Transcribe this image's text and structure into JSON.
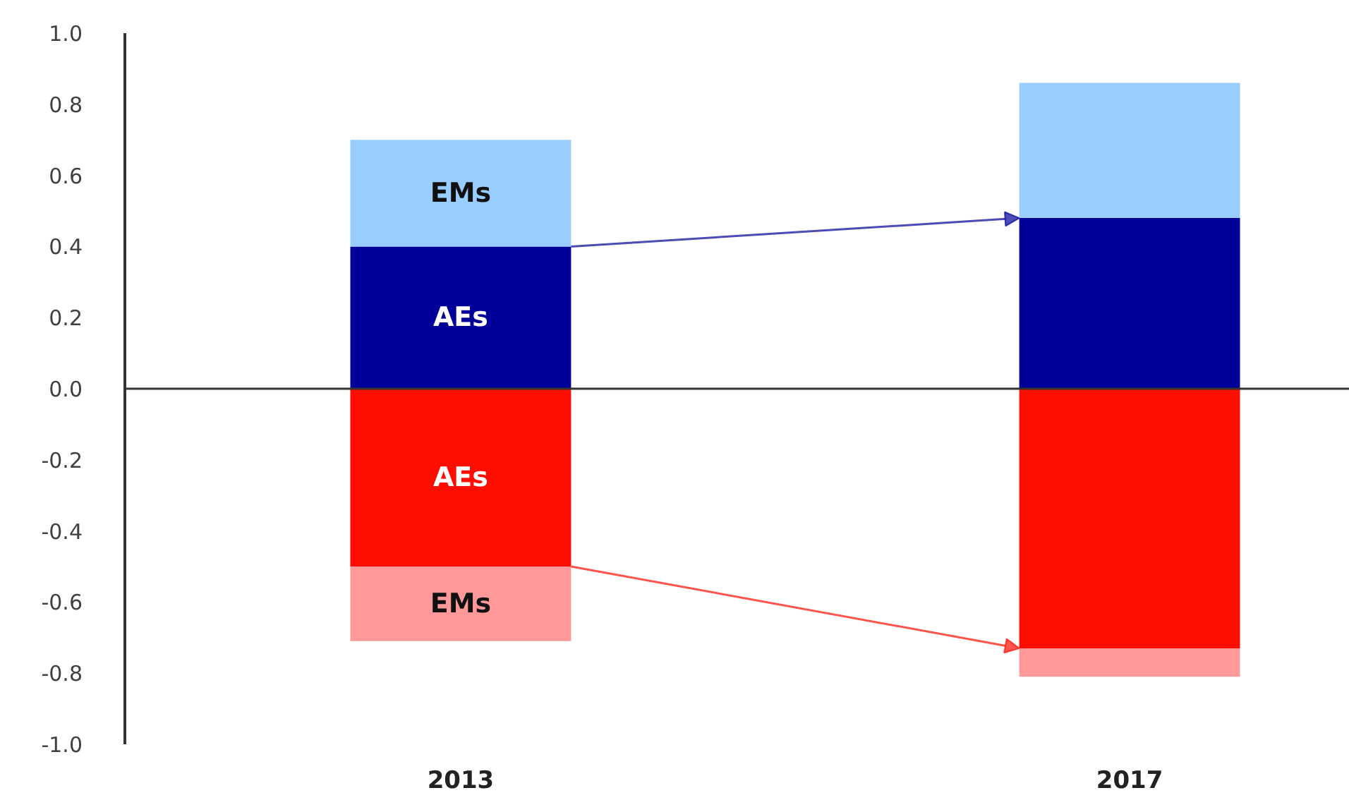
{
  "chart_data": {
    "type": "bar",
    "stacked": true,
    "categories": [
      "2013",
      "2017"
    ],
    "series": [
      {
        "name": "AEs",
        "color": "#000099",
        "values": [
          0.4,
          0.48
        ]
      },
      {
        "name": "EMs",
        "color": "#99ccff",
        "values": [
          0.3,
          0.38
        ]
      },
      {
        "name": "AEs",
        "color": "#ff0d00",
        "values": [
          -0.5,
          -0.73
        ]
      },
      {
        "name": "EMs",
        "color": "#ff9999",
        "values": [
          -0.21,
          -0.08
        ]
      }
    ],
    "ylim": [
      -1.0,
      1.0
    ],
    "yticks": [
      {
        "value": -1.0,
        "label": "-1.0"
      },
      {
        "value": -0.8,
        "label": "-0.8"
      },
      {
        "value": -0.6,
        "label": "-0.6"
      },
      {
        "value": -0.4,
        "label": "-0.4"
      },
      {
        "value": -0.2,
        "label": "-0.2"
      },
      {
        "value": 0.0,
        "label": "0.0"
      },
      {
        "value": 0.2,
        "label": "0.2"
      },
      {
        "value": 0.4,
        "label": "0.4"
      },
      {
        "value": 0.6,
        "label": "0.6"
      },
      {
        "value": 0.8,
        "label": "0.8"
      },
      {
        "value": 1.0,
        "label": "1.0"
      }
    ],
    "ref_lines": [
      {
        "axis": "y",
        "value": 0,
        "color": "#333333"
      }
    ]
  }
}
